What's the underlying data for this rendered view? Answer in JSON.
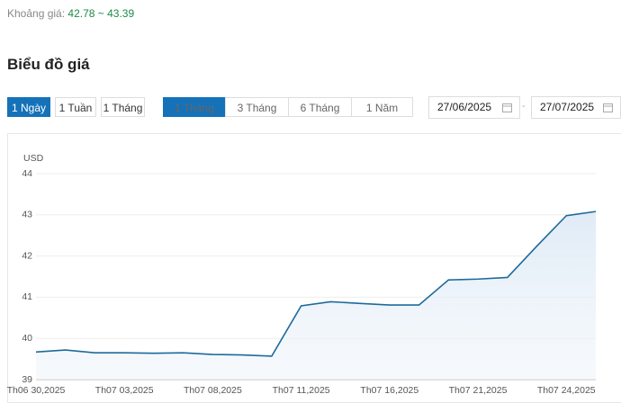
{
  "header": {
    "price_range_label": "Khoảng giá:",
    "price_range": "42.78 ~ 43.39",
    "section_title": "Biểu đồ giá"
  },
  "controls": {
    "interval": [
      "1 Ngày",
      "1 Tuần",
      "1 Tháng"
    ],
    "period": [
      "1 Tháng",
      "3 Tháng",
      "6 Tháng",
      "1 Năm"
    ],
    "date_from": "27/06/2025",
    "date_separator": "-",
    "date_to": "27/07/2025"
  },
  "chart_data": {
    "type": "line",
    "y_label": "USD",
    "categories": [
      "Th06 30,2025",
      null,
      null,
      "Th07 03,2025",
      null,
      null,
      "Th07 08,2025",
      null,
      null,
      "Th07 11,2025",
      null,
      null,
      "Th07 16,2025",
      null,
      null,
      "Th07 21,2025",
      null,
      null,
      "Th07 24,2025",
      null
    ],
    "values": [
      39.67,
      39.72,
      39.65,
      39.65,
      39.64,
      39.65,
      39.61,
      39.6,
      39.57,
      40.79,
      40.89,
      40.85,
      40.81,
      40.81,
      41.42,
      41.44,
      41.48,
      42.24,
      42.98,
      43.08
    ],
    "color": "#1d6a9a",
    "ylim": [
      39,
      44
    ],
    "yticks": [
      39,
      40,
      41,
      42,
      43,
      44
    ],
    "grid": true
  }
}
